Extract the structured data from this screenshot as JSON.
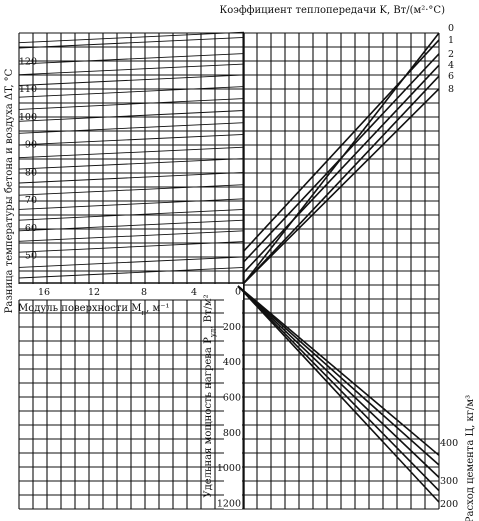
{
  "chart_data": [
    {
      "type": "line",
      "panel": "top-left",
      "ylabel": "Разница температуры бетона и воздуха ΔT, °C",
      "xlabel": "Модуль поверхности M",
      "xlabel_sub": "п",
      "xlabel_unit": ", м⁻¹",
      "xlim": [
        18,
        0
      ],
      "ylim": [
        40,
        130
      ],
      "xticks": [
        "16",
        "12",
        "8",
        "4"
      ],
      "xtick_values": [
        16,
        12,
        8,
        4
      ],
      "yticks": [
        "50",
        "60",
        "70",
        "80",
        "90",
        "100",
        "110",
        "120"
      ],
      "ytick_values": [
        50,
        60,
        70,
        80,
        90,
        100,
        110,
        120
      ],
      "series": [
        {
          "values": [
            [
              18,
              41.8
            ],
            [
              0,
              45.6
            ]
          ]
        },
        {
          "values": [
            [
              18,
              45.6
            ],
            [
              0,
              49.4
            ]
          ]
        },
        {
          "values": [
            [
              18,
              51.1
            ],
            [
              0,
              54.9
            ]
          ]
        },
        {
          "values": [
            [
              18,
              55.0
            ],
            [
              0,
              58.8
            ]
          ]
        },
        {
          "values": [
            [
              18,
              58.8
            ],
            [
              0,
              62.6
            ]
          ]
        },
        {
          "values": [
            [
              18,
              62.6
            ],
            [
              0,
              66.5
            ]
          ]
        },
        {
          "values": [
            [
              18,
              66.5
            ],
            [
              0,
              70.3
            ]
          ]
        },
        {
          "values": [
            [
              18,
              71.6
            ],
            [
              0,
              75.4
            ]
          ]
        },
        {
          "values": [
            [
              18,
              76.0
            ],
            [
              0,
              79.8
            ]
          ]
        },
        {
          "values": [
            [
              18,
              81.0
            ],
            [
              0,
              84.8
            ]
          ]
        },
        {
          "values": [
            [
              18,
              85.1
            ],
            [
              0,
              88.9
            ]
          ]
        },
        {
          "values": [
            [
              18,
              89.7
            ],
            [
              0,
              93.5
            ]
          ]
        },
        {
          "values": [
            [
              18,
              93.9
            ],
            [
              0,
              97.7
            ]
          ]
        },
        {
          "values": [
            [
              18,
              98.2
            ],
            [
              0,
              102.1
            ]
          ]
        },
        {
          "values": [
            [
              18,
              102.5
            ],
            [
              0,
              106.4
            ]
          ]
        },
        {
          "values": [
            [
              18,
              106.9
            ],
            [
              0,
              110.7
            ]
          ]
        },
        {
          "values": [
            [
              18,
              111.1
            ],
            [
              0,
              114.9
            ]
          ]
        },
        {
          "values": [
            [
              18,
              115.0
            ],
            [
              0,
              118.8
            ]
          ]
        },
        {
          "values": [
            [
              18,
              118.8
            ],
            [
              0,
              122.6
            ]
          ]
        },
        {
          "values": [
            [
              18,
              124.6
            ],
            [
              0,
              128.4
            ]
          ]
        },
        {
          "values": [
            [
              18,
              126.5
            ],
            [
              0,
              130.3
            ]
          ]
        }
      ]
    },
    {
      "type": "line",
      "panel": "top-right",
      "title": "Коэффициент теплопередачи K, Вт/(м²·°С)",
      "series_labels": [
        "0",
        "1",
        "2",
        "4",
        "6",
        "8"
      ],
      "series": [
        {
          "name": "0",
          "values": [
            [
              0,
              40
            ],
            [
              1,
              130
            ]
          ]
        },
        {
          "name": "1",
          "values": [
            [
              0,
              51.6
            ],
            [
              1,
              127.5
            ]
          ]
        },
        {
          "name": "2",
          "values": [
            [
              0,
              47.7
            ],
            [
              1,
              122.5
            ]
          ]
        },
        {
          "name": "4",
          "values": [
            [
              0,
              43.9
            ],
            [
              1,
              118.4
            ]
          ]
        },
        {
          "name": "6",
          "values": [
            [
              0,
              40.0
            ],
            [
              1,
              114.5
            ]
          ]
        },
        {
          "name": "8",
          "values": [
            [
              0,
              40.0
            ],
            [
              1,
              109.9
            ]
          ]
        }
      ]
    },
    {
      "type": "line",
      "panel": "bottom-right",
      "ylabel": "Удельная мощность нагрева P",
      "ylabel_sub": "уд",
      "ylabel_unit": ", Вт/м²",
      "ylim": [
        0,
        1250
      ],
      "yticks": [
        "0",
        "200",
        "400",
        "600",
        "800",
        "1000",
        "1200"
      ],
      "ytick_values": [
        0,
        200,
        400,
        600,
        800,
        1000,
        1200
      ],
      "right_label": "Расход цемента Ц, кг/м³",
      "right_ticks": [
        "400",
        "300",
        "200"
      ],
      "series": [
        {
          "name": "400",
          "values": [
            [
              0,
              0
            ],
            [
              1,
              930
            ]
          ]
        },
        {
          "name": "",
          "values": [
            [
              0,
              0
            ],
            [
              1,
              985
            ]
          ]
        },
        {
          "name": "300",
          "values": [
            [
              0,
              0
            ],
            [
              1,
              1055
            ]
          ]
        },
        {
          "name": "",
          "values": [
            [
              0,
              0
            ],
            [
              1,
              1130
            ]
          ]
        },
        {
          "name": "200",
          "values": [
            [
              0,
              0
            ],
            [
              1,
              1195
            ]
          ]
        }
      ]
    }
  ]
}
